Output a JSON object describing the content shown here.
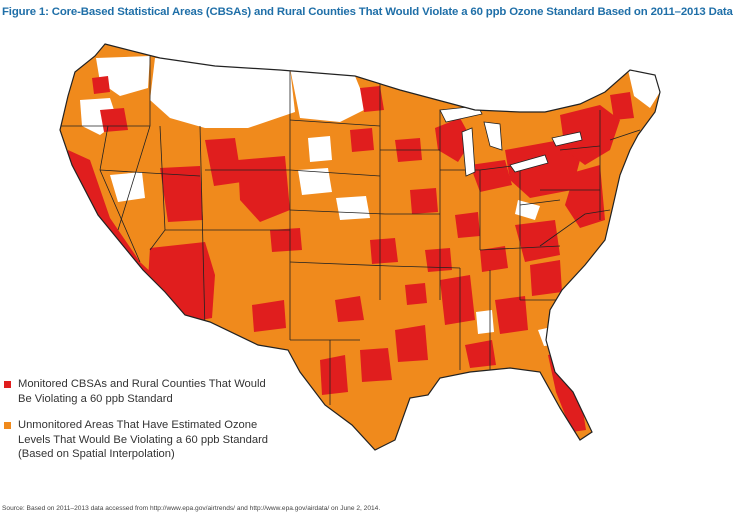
{
  "figure": {
    "title": "Figure 1: Core-Based Statistical Areas (CBSAs) and Rural Counties That Would Violate a 60 ppb Ozone Standard Based on 2011–2013 Data"
  },
  "colors": {
    "monitored": "#e01e1e",
    "unmonitored": "#f08a1c",
    "not_violating": "#ffffff",
    "borders": "#222222"
  },
  "legend": {
    "items": [
      {
        "label": "Monitored CBSAs and Rural Counties That Would Be Violating a 60 ppb Standard",
        "color": "#e01e1e"
      },
      {
        "label": "Unmonitored Areas That Have Estimated Ozone Levels That Would Be Violating a 60 ppb Standard (Based on Spatial Interpolation)",
        "color": "#f08a1c"
      }
    ]
  },
  "source": {
    "text": "Source: Based on 2011–2013 data accessed from http://www.epa.gov/airtrends/ and http://www.epa.gov/airdata/ on June 2, 2014."
  }
}
